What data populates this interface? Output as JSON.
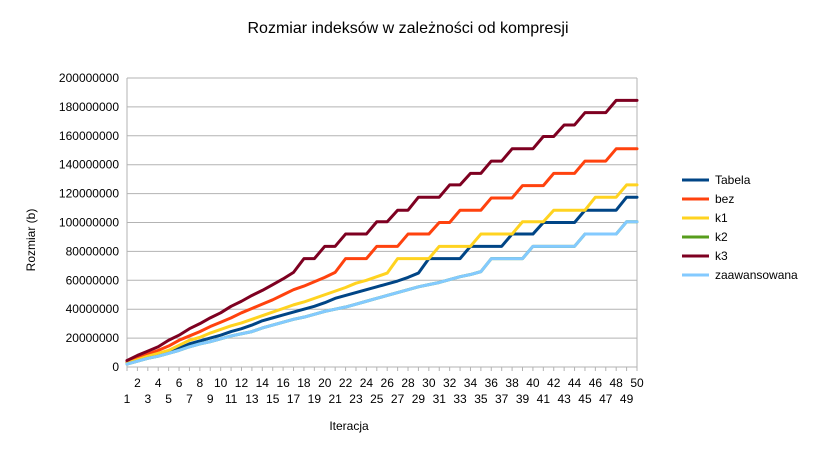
{
  "chart_data": {
    "type": "line",
    "title": "Rozmiar indeksów w zależności od kompresji",
    "xlabel": "Iteracja",
    "ylabel": "Rozmiar (b)",
    "x": [
      1,
      2,
      3,
      4,
      5,
      6,
      7,
      8,
      9,
      10,
      11,
      12,
      13,
      14,
      15,
      16,
      17,
      18,
      19,
      20,
      21,
      22,
      23,
      24,
      25,
      26,
      27,
      28,
      29,
      30,
      31,
      32,
      33,
      34,
      35,
      36,
      37,
      38,
      39,
      40,
      41,
      42,
      43,
      44,
      45,
      46,
      47,
      48,
      49,
      50
    ],
    "ylim": [
      0,
      200000000
    ],
    "yticks": [
      "0",
      "20000000",
      "40000000",
      "60000000",
      "80000000",
      "100000000",
      "120000000",
      "140000000",
      "160000000",
      "180000000",
      "200000000"
    ],
    "grid": true,
    "legend_position": "right",
    "series": [
      {
        "name": "Tabela",
        "color": "#004586",
        "values": [
          3000000,
          5000000,
          7000000,
          8500000,
          10500000,
          13000000,
          16000000,
          18000000,
          20000000,
          22000000,
          24500000,
          26500000,
          29000000,
          32000000,
          34000000,
          36000000,
          38000000,
          40000000,
          42000000,
          44500000,
          47500000,
          49500000,
          51500000,
          53500000,
          55500000,
          57500000,
          59500000,
          62000000,
          65000000,
          75000000,
          75000000,
          75000000,
          75000000,
          83500000,
          83500000,
          83500000,
          83500000,
          92000000,
          92000000,
          92000000,
          100000000,
          100000000,
          100000000,
          100000000,
          108500000,
          108500000,
          108500000,
          108500000,
          117500000,
          117500000
        ]
      },
      {
        "name": "bez",
        "color": "#ff420e",
        "values": [
          4000000,
          6500000,
          9000000,
          11500000,
          14500000,
          18500000,
          21500000,
          24500000,
          28000000,
          31000000,
          34000000,
          37500000,
          40500000,
          43500000,
          46500000,
          50000000,
          53500000,
          56000000,
          59000000,
          62000000,
          65500000,
          75000000,
          75000000,
          75000000,
          83500000,
          83500000,
          83500000,
          92000000,
          92000000,
          92000000,
          100000000,
          100000000,
          108500000,
          108500000,
          108500000,
          117000000,
          117000000,
          117000000,
          125500000,
          125500000,
          125500000,
          134000000,
          134000000,
          134000000,
          142500000,
          142500000,
          142500000,
          151000000,
          151000000,
          151000000
        ]
      },
      {
        "name": "k1",
        "color": "#ffd320",
        "values": [
          2500000,
          5000000,
          7500000,
          9500000,
          11500000,
          15000000,
          18500000,
          20500000,
          23500000,
          26000000,
          28500000,
          30500000,
          33000000,
          35500000,
          38000000,
          40500000,
          43000000,
          45000000,
          47500000,
          50000000,
          52500000,
          55000000,
          58000000,
          60000000,
          62500000,
          65000000,
          75000000,
          75000000,
          75000000,
          75000000,
          83500000,
          83500000,
          83500000,
          83500000,
          92000000,
          92000000,
          92000000,
          92000000,
          100500000,
          100500000,
          100500000,
          108500000,
          108500000,
          108500000,
          108500000,
          117500000,
          117500000,
          117500000,
          126000000,
          126000000
        ]
      },
      {
        "name": "k2",
        "color": "#579d1c",
        "values": [
          2000000,
          4000000,
          6000000,
          7500000,
          9500000,
          11500000,
          14000000,
          16000000,
          17500000,
          19500000,
          21500000,
          23000000,
          24500000,
          27000000,
          29000000,
          31000000,
          33000000,
          34500000,
          36500000,
          38500000,
          40000000,
          41500000,
          43500000,
          45500000,
          47500000,
          49500000,
          51500000,
          53500000,
          55500000,
          57000000,
          58500000,
          60500000,
          62500000,
          64000000,
          66000000,
          75000000,
          75000000,
          75000000,
          75000000,
          83500000,
          83500000,
          83500000,
          83500000,
          83500000,
          92000000,
          92000000,
          92000000,
          92000000,
          100500000,
          100500000
        ]
      },
      {
        "name": "k3",
        "color": "#7e0021",
        "values": [
          4500000,
          8000000,
          11000000,
          14000000,
          18500000,
          22000000,
          26500000,
          30000000,
          34000000,
          37500000,
          42000000,
          45500000,
          49500000,
          53000000,
          57000000,
          61000000,
          65500000,
          75000000,
          75000000,
          83500000,
          83500000,
          92000000,
          92000000,
          92000000,
          100500000,
          100500000,
          108500000,
          108500000,
          117500000,
          117500000,
          117500000,
          126000000,
          126000000,
          134000000,
          134000000,
          142500000,
          142500000,
          151000000,
          151000000,
          151000000,
          159500000,
          159500000,
          167500000,
          167500000,
          176000000,
          176000000,
          176000000,
          184500000,
          184500000,
          184500000
        ]
      },
      {
        "name": "zaawansowana",
        "color": "#83caff",
        "values": [
          2000000,
          4000000,
          6000000,
          7500000,
          9500000,
          11500000,
          14000000,
          16000000,
          17500000,
          19500000,
          21500000,
          23000000,
          24500000,
          27000000,
          29000000,
          31000000,
          33000000,
          34500000,
          36500000,
          38500000,
          40000000,
          41500000,
          43500000,
          45500000,
          47500000,
          49500000,
          51500000,
          53500000,
          55500000,
          57000000,
          58500000,
          60500000,
          62500000,
          64000000,
          66000000,
          75000000,
          75000000,
          75000000,
          75000000,
          83500000,
          83500000,
          83500000,
          83500000,
          83500000,
          92000000,
          92000000,
          92000000,
          92000000,
          100500000,
          100500000
        ]
      }
    ]
  }
}
